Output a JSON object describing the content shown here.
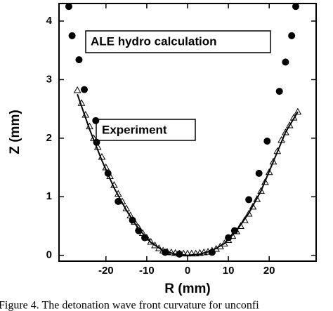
{
  "chart_data": {
    "type": "scatter",
    "xlabel": "R (mm)",
    "ylabel": "Z (mm)",
    "caption": "Figure 4.  The detonation wave front curvature for unconfi",
    "xlim": [
      -31.5,
      31.5
    ],
    "xticks": [
      -20,
      -10,
      0,
      10,
      20
    ],
    "ylim": [
      -0.1,
      4.3
    ],
    "yticks": [
      0,
      1,
      2,
      3,
      4
    ],
    "annotations": [
      "ALE hydro calculation",
      "Experiment"
    ],
    "series": [
      {
        "kind": "circle",
        "color": "#000000",
        "x": [
          -29.1,
          -28.3,
          -26.6,
          -25.3,
          -22.5,
          -22.3,
          -19.5,
          -17,
          -13.5,
          -12,
          -10.5,
          -5.5,
          -2,
          6,
          10,
          11.5,
          15,
          17.5,
          19.5,
          22.5,
          24,
          25.5,
          26.5
        ],
        "values": [
          4.25,
          3.75,
          3.34,
          2.83,
          2.3,
          1.93,
          1.4,
          0.92,
          0.6,
          0.42,
          0.3,
          0.05,
          0.02,
          0.05,
          0.3,
          0.42,
          0.95,
          1.4,
          1.95,
          2.8,
          3.3,
          3.75,
          4.25
        ]
      },
      {
        "kind": "triangle",
        "color": "#000000",
        "x": [
          -27,
          -26,
          -25,
          -24,
          -23,
          -22,
          -21,
          -20,
          -19,
          -18,
          -17,
          -16,
          -15,
          -14,
          -13,
          -12,
          -11,
          -10,
          -9,
          -8,
          -7,
          -6,
          -5,
          -4,
          -3,
          -2,
          -1,
          0,
          1,
          2,
          3,
          4,
          5,
          6,
          7,
          8,
          9,
          10,
          11,
          12,
          13,
          14,
          15,
          16,
          17,
          18,
          19,
          20,
          21,
          22,
          23,
          24,
          25,
          26,
          27
        ],
        "values": [
          2.82,
          2.6,
          2.4,
          2.2,
          2.0,
          1.85,
          1.68,
          1.5,
          1.35,
          1.2,
          1.05,
          0.92,
          0.8,
          0.68,
          0.57,
          0.47,
          0.38,
          0.3,
          0.23,
          0.17,
          0.12,
          0.08,
          0.06,
          0.05,
          0.04,
          0.03,
          0.03,
          0.03,
          0.03,
          0.03,
          0.04,
          0.05,
          0.06,
          0.08,
          0.11,
          0.15,
          0.2,
          0.26,
          0.33,
          0.41,
          0.5,
          0.6,
          0.71,
          0.83,
          0.96,
          1.1,
          1.25,
          1.42,
          1.6,
          1.78,
          1.97,
          2.1,
          2.22,
          2.35,
          2.45
        ]
      },
      {
        "kind": "line",
        "color": "#000000",
        "x": [
          -27,
          -24,
          -21,
          -18,
          -15,
          -12,
          -9,
          -6,
          -3,
          0,
          3,
          6,
          9,
          12,
          15,
          18,
          21,
          24,
          27
        ],
        "values": [
          2.75,
          2.15,
          1.62,
          1.15,
          0.77,
          0.45,
          0.22,
          0.08,
          0.02,
          0,
          0.02,
          0.08,
          0.2,
          0.42,
          0.72,
          1.1,
          1.6,
          2.1,
          2.45
        ]
      }
    ]
  }
}
